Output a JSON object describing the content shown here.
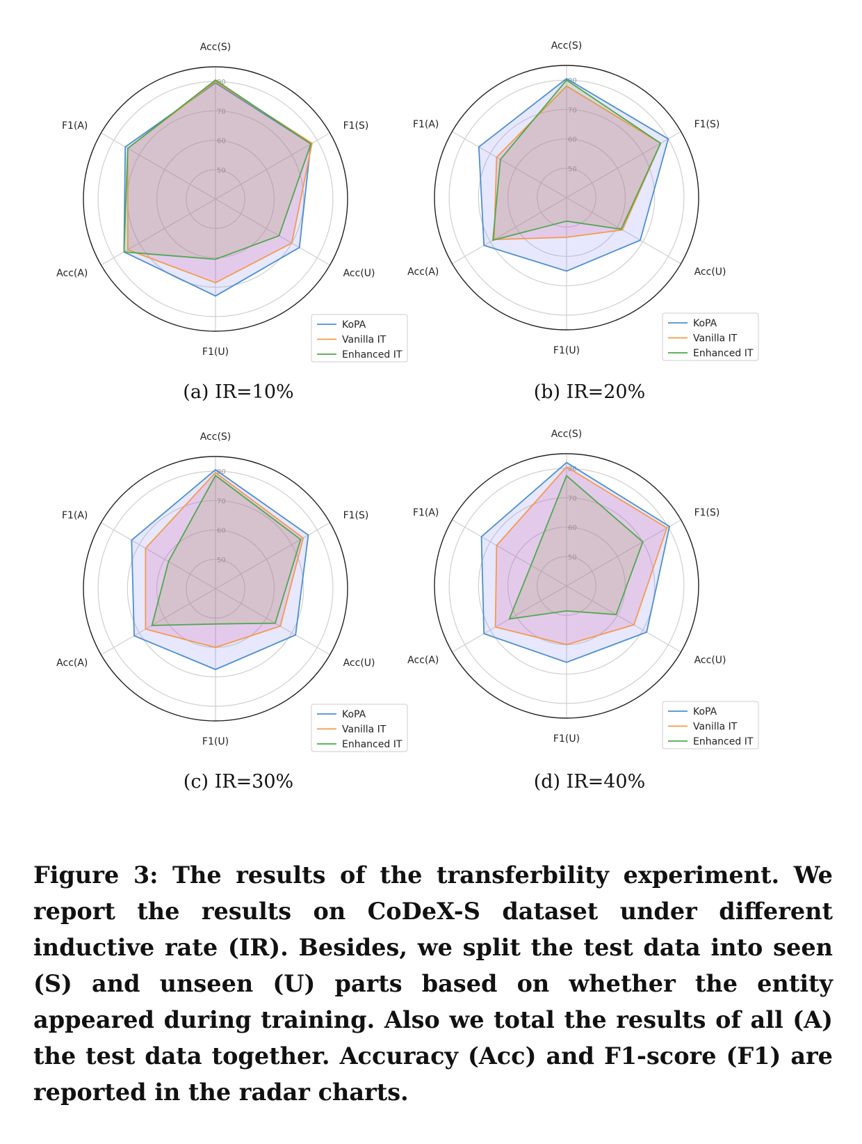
{
  "figure_caption": "Figure 3: The results of the transferbility experiment. We report the results on CoDeX-S dataset under different inductive rate (IR). Besides, we split the test data into seen (S) and unseen (U) parts based on whether the entity appeared during training. Also we total the results of all (A) the test data together. Accuracy (Acc) and F1-score (F1) are reported in the radar charts.",
  "colors": {
    "KoPA": "#4c8fd0",
    "Vanilla IT": "#f39a4c",
    "Enhanced IT": "#4ea84e"
  },
  "chart_data": [
    {
      "type": "radar",
      "subcaption": "(a)  IR=10%",
      "axes": [
        "Acc(S)",
        "F1(S)",
        "Acc(U)",
        "F1(U)",
        "Acc(A)",
        "F1(A)"
      ],
      "rticks": [
        "50",
        "60",
        "70",
        "80"
      ],
      "rlim": [
        40,
        85
      ],
      "grid": true,
      "legend_position": "lower-right",
      "series": [
        {
          "name": "KoPA",
          "values": [
            79.5,
            77.5,
            73.0,
            73.0,
            76.0,
            75.5
          ]
        },
        {
          "name": "Vanilla IT",
          "values": [
            80.0,
            78.0,
            70.0,
            68.5,
            74.5,
            74.5
          ]
        },
        {
          "name": "Enhanced IT",
          "values": [
            80.5,
            77.5,
            65.0,
            60.5,
            76.0,
            74.5
          ]
        }
      ]
    },
    {
      "type": "radar",
      "subcaption": "(b)  IR=20%",
      "axes": [
        "Acc(S)",
        "F1(S)",
        "Acc(U)",
        "F1(U)",
        "Acc(A)",
        "F1(A)"
      ],
      "rticks": [
        "50",
        "60",
        "70",
        "80"
      ],
      "rlim": [
        40,
        85
      ],
      "grid": true,
      "legend_position": "lower-right",
      "series": [
        {
          "name": "KoPA",
          "values": [
            80.5,
            80.0,
            69.0,
            65.0,
            72.5,
            74.5
          ]
        },
        {
          "name": "Vanilla IT",
          "values": [
            78.0,
            77.0,
            62.0,
            53.5,
            68.5,
            67.5
          ]
        },
        {
          "name": "Enhanced IT",
          "values": [
            80.0,
            77.0,
            61.5,
            48.0,
            69.0,
            66.0
          ]
        }
      ]
    },
    {
      "type": "radar",
      "subcaption": "(c)  IR=30%",
      "axes": [
        "Acc(S)",
        "F1(S)",
        "Acc(U)",
        "F1(U)",
        "Acc(A)",
        "F1(A)"
      ],
      "rticks": [
        "50",
        "60",
        "70",
        "80"
      ],
      "rlim": [
        40,
        85
      ],
      "grid": true,
      "legend_position": "lower-right",
      "series": [
        {
          "name": "KoPA",
          "values": [
            80.5,
            76.5,
            71.5,
            67.5,
            72.0,
            73.0
          ]
        },
        {
          "name": "Vanilla IT",
          "values": [
            79.5,
            74.5,
            65.5,
            60.0,
            67.5,
            67.5
          ]
        },
        {
          "name": "Enhanced IT",
          "values": [
            78.5,
            73.5,
            63.5,
            52.0,
            65.0,
            58.5
          ]
        }
      ]
    },
    {
      "type": "radar",
      "subcaption": "(d)  IR=40%",
      "axes": [
        "Acc(S)",
        "F1(S)",
        "Acc(U)",
        "F1(U)",
        "Acc(A)",
        "F1(A)"
      ],
      "rticks": [
        "50",
        "60",
        "70",
        "80"
      ],
      "rlim": [
        40,
        85
      ],
      "grid": true,
      "legend_position": "lower-right",
      "series": [
        {
          "name": "KoPA",
          "values": [
            82.0,
            80.5,
            71.5,
            66.0,
            72.5,
            73.5
          ]
        },
        {
          "name": "Vanilla IT",
          "values": [
            80.5,
            79.5,
            66.5,
            60.0,
            68.0,
            67.5
          ]
        },
        {
          "name": "Enhanced IT",
          "values": [
            77.5,
            70.0,
            59.5,
            48.5,
            62.5,
            54.0
          ]
        }
      ]
    }
  ]
}
